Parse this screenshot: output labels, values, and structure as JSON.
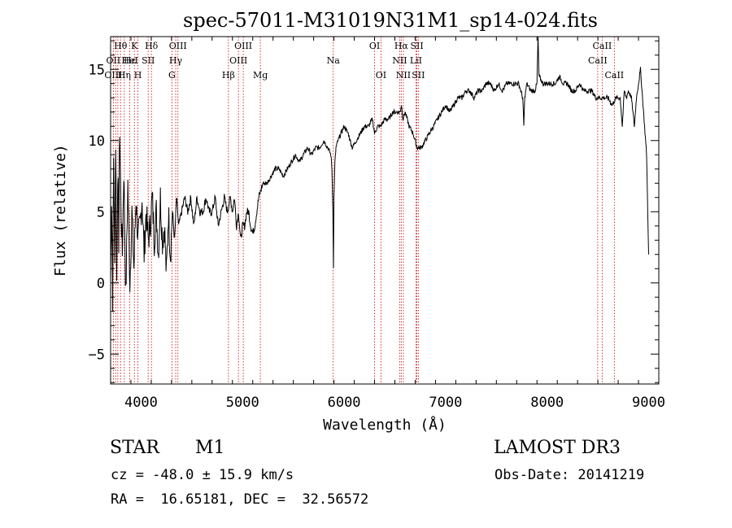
{
  "chart_data": {
    "type": "line",
    "title": "spec-57011-M31019N31M1_sp14-024.fits",
    "xlabel": "Wavelength (Å)",
    "ylabel": "Flux (relative)",
    "xlim": [
      3700,
      9100
    ],
    "ylim": [
      -7.1,
      17.3
    ],
    "x_ticks": [
      4000,
      5000,
      6000,
      7000,
      8000,
      9000
    ],
    "y_ticks": [
      -5,
      0,
      5,
      10,
      15
    ],
    "series": [
      {
        "name": "spectrum",
        "x": [
          3700,
          3710,
          3720,
          3730,
          3740,
          3750,
          3760,
          3770,
          3780,
          3790,
          3800,
          3815,
          3830,
          3850,
          3870,
          3890,
          3910,
          3930,
          3950,
          3970,
          3990,
          4010,
          4030,
          4050,
          4070,
          4090,
          4110,
          4130,
          4150,
          4170,
          4190,
          4210,
          4230,
          4250,
          4270,
          4290,
          4310,
          4330,
          4350,
          4370,
          4400,
          4430,
          4460,
          4490,
          4520,
          4550,
          4580,
          4610,
          4640,
          4670,
          4700,
          4730,
          4760,
          4790,
          4820,
          4850,
          4880,
          4900,
          4920,
          4940,
          4960,
          4980,
          5000,
          5020,
          5040,
          5060,
          5080,
          5100,
          5120,
          5140,
          5160,
          5180,
          5200,
          5240,
          5280,
          5320,
          5360,
          5400,
          5440,
          5480,
          5520,
          5560,
          5600,
          5640,
          5680,
          5720,
          5760,
          5800,
          5840,
          5870,
          5880,
          5890,
          5895,
          5900,
          5910,
          5920,
          5940,
          5970,
          6000,
          6040,
          6080,
          6120,
          6160,
          6200,
          6240,
          6280,
          6300,
          6330,
          6360,
          6400,
          6440,
          6480,
          6520,
          6550,
          6565,
          6580,
          6600,
          6640,
          6680,
          6720,
          6760,
          6800,
          6840,
          6880,
          6920,
          6960,
          7000,
          7040,
          7080,
          7120,
          7160,
          7200,
          7240,
          7280,
          7320,
          7360,
          7400,
          7440,
          7480,
          7520,
          7560,
          7600,
          7640,
          7680,
          7720,
          7740,
          7760,
          7770,
          7780,
          7800,
          7840,
          7880,
          7900,
          7910,
          7920,
          7960,
          8000,
          8040,
          8080,
          8120,
          8160,
          8200,
          8240,
          8280,
          8320,
          8360,
          8400,
          8440,
          8480,
          8520,
          8560,
          8600,
          8640,
          8680,
          8700,
          8720,
          8740,
          8760,
          8780,
          8800,
          8830,
          8860,
          8880,
          8900,
          8920,
          8940,
          8960,
          8980,
          9000
        ],
        "y": [
          0.2,
          6,
          -1,
          9,
          1,
          10,
          0,
          8,
          3,
          11,
          6,
          2,
          8,
          -1,
          7,
          0,
          5,
          1,
          6,
          3,
          4,
          6,
          2,
          5,
          3,
          4,
          6,
          3,
          5,
          2,
          6,
          3,
          4,
          0.5,
          5,
          2,
          5,
          3,
          6,
          4,
          5,
          6,
          5,
          6,
          4,
          6,
          5,
          5,
          6,
          5,
          5,
          6,
          4,
          5,
          6,
          5,
          6,
          5,
          6,
          4,
          5,
          3,
          4,
          4,
          5,
          5,
          4,
          3.5,
          4,
          5,
          6,
          6.5,
          7,
          7,
          7.5,
          8,
          8,
          7.5,
          8,
          8.5,
          9,
          8.5,
          9,
          9.5,
          9,
          9.5,
          9.5,
          10,
          9.5,
          9,
          8,
          5,
          1,
          6,
          8.5,
          9.5,
          10,
          10.5,
          11,
          10.5,
          9.5,
          10,
          10.5,
          11,
          11,
          11.5,
          10.5,
          11,
          11,
          11.5,
          11.5,
          12,
          12,
          12,
          12.5,
          11.5,
          12,
          11,
          10.5,
          9.5,
          9.5,
          10,
          10.5,
          11,
          11.5,
          12,
          12.5,
          12,
          12.5,
          13,
          13,
          13.5,
          13.5,
          13,
          13.5,
          13.5,
          14,
          14,
          13.5,
          14,
          13.5,
          14,
          14,
          14,
          14,
          13.5,
          13,
          11,
          13,
          14,
          13.5,
          13.5,
          14,
          17.3,
          14.5,
          14,
          14,
          14,
          14,
          14.5,
          14,
          14,
          13.5,
          13.5,
          14,
          13.5,
          13.5,
          13.5,
          13,
          13,
          13,
          13,
          12.5,
          13,
          13,
          13,
          11,
          13.5,
          13,
          13.5,
          13,
          11,
          13,
          14,
          15,
          13,
          11,
          9,
          2
        ]
      }
    ],
    "line_labels": [
      {
        "name": "Hθ",
        "wave": 3798,
        "row": 0
      },
      {
        "name": "OII",
        "wave": 3727,
        "row": 1
      },
      {
        "name": "OIII",
        "wave": 3727,
        "row": 2
      },
      {
        "name": "K",
        "wave": 3934,
        "row": 0
      },
      {
        "name": "Hε",
        "wave": 3889,
        "row": 1
      },
      {
        "name": "Hη",
        "wave": 3835,
        "row": 2
      },
      {
        "name": "HeI",
        "wave": 3889,
        "row": 1
      },
      {
        "name": "H",
        "wave": 3969,
        "row": 2
      },
      {
        "name": "Hδ",
        "wave": 4102,
        "row": 0
      },
      {
        "name": "SII",
        "wave": 4070,
        "row": 1
      },
      {
        "name": "OIII",
        "wave": 4363,
        "row": 0
      },
      {
        "name": "Hγ",
        "wave": 4341,
        "row": 1
      },
      {
        "name": "G",
        "wave": 4304,
        "row": 2
      },
      {
        "name": "OIII",
        "wave": 5007,
        "row": 0
      },
      {
        "name": "OIII",
        "wave": 4959,
        "row": 1
      },
      {
        "name": "Hβ",
        "wave": 4861,
        "row": 2
      },
      {
        "name": "Mg",
        "wave": 5175,
        "row": 2
      },
      {
        "name": "Na",
        "wave": 5893,
        "row": 1
      },
      {
        "name": "OI",
        "wave": 6300,
        "row": 0
      },
      {
        "name": "OI",
        "wave": 6363,
        "row": 2
      },
      {
        "name": "Hα",
        "wave": 6563,
        "row": 0
      },
      {
        "name": "SII",
        "wave": 6717,
        "row": 0
      },
      {
        "name": "NII",
        "wave": 6548,
        "row": 1
      },
      {
        "name": "LiI",
        "wave": 6708,
        "row": 1
      },
      {
        "name": "NII",
        "wave": 6584,
        "row": 2
      },
      {
        "name": "SII",
        "wave": 6731,
        "row": 2
      },
      {
        "name": "CaII",
        "wave": 8542,
        "row": 0
      },
      {
        "name": "CaII",
        "wave": 8498,
        "row": 1
      },
      {
        "name": "CaII",
        "wave": 8662,
        "row": 2
      }
    ],
    "marker_lines": [
      3727,
      3750,
      3771,
      3798,
      3835,
      3889,
      3934,
      3969,
      4070,
      4102,
      4304,
      4341,
      4363,
      4861,
      4959,
      5007,
      5175,
      5893,
      6300,
      6363,
      6548,
      6563,
      6584,
      6708,
      6717,
      6731,
      8498,
      8542,
      8662
    ]
  },
  "info": {
    "object_type": "STAR",
    "spectral_class": "M1",
    "survey": "LAMOST DR3",
    "cz_text": "cz = -48.0 ± 15.9 km/s",
    "obs_date_text": "Obs-Date: 20141219",
    "radec_text": "RA =  16.65181, DEC =  32.56572"
  }
}
